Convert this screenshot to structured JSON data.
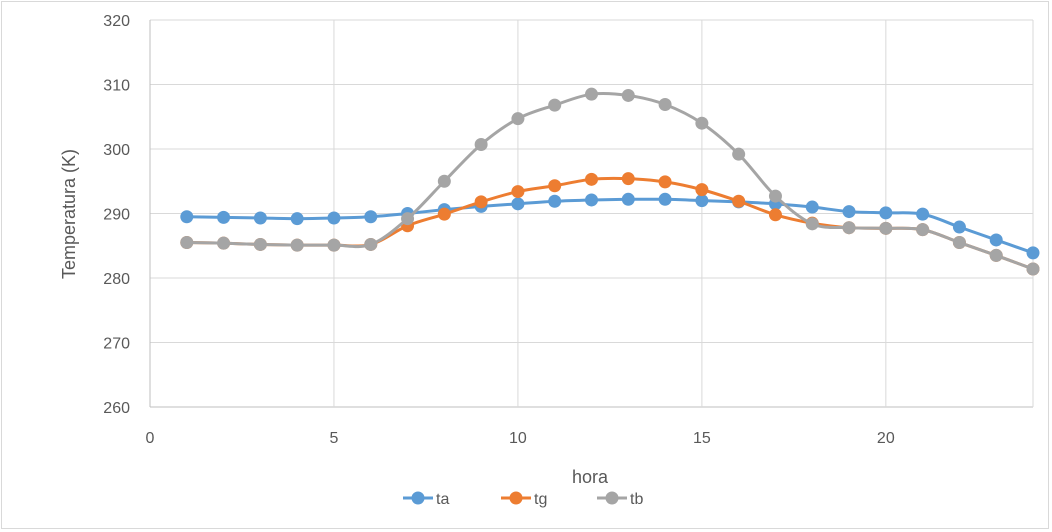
{
  "chart_data": {
    "type": "line",
    "title": "",
    "xlabel": "hora",
    "ylabel": "Temperatura (K)",
    "xlim": [
      0,
      24
    ],
    "ylim": [
      260,
      320
    ],
    "x_ticks": [
      0,
      5,
      10,
      15,
      20
    ],
    "y_ticks": [
      260,
      270,
      280,
      290,
      300,
      310,
      320
    ],
    "grid": true,
    "legend_position": "bottom",
    "x": [
      1,
      2,
      3,
      4,
      5,
      6,
      7,
      8,
      9,
      10,
      11,
      12,
      13,
      14,
      15,
      16,
      17,
      18,
      19,
      20,
      21,
      22,
      23,
      24
    ],
    "series": [
      {
        "name": "ta",
        "color": "#5b9bd5",
        "values": [
          289.5,
          289.4,
          289.3,
          289.2,
          289.3,
          289.5,
          290.0,
          290.6,
          291.1,
          291.5,
          291.9,
          292.1,
          292.2,
          292.2,
          292.0,
          291.8,
          291.5,
          291.0,
          290.3,
          290.1,
          289.9,
          287.9,
          285.9,
          283.9
        ]
      },
      {
        "name": "tg",
        "color": "#ed7d31",
        "values": [
          285.5,
          285.4,
          285.2,
          285.1,
          285.1,
          285.2,
          288.1,
          289.9,
          291.8,
          293.4,
          294.3,
          295.3,
          295.4,
          294.9,
          293.7,
          291.9,
          289.8,
          288.5,
          287.8,
          287.7,
          287.5,
          285.5,
          283.5,
          281.4
        ]
      },
      {
        "name": "tb",
        "color": "#a5a5a5",
        "values": [
          285.5,
          285.4,
          285.2,
          285.1,
          285.1,
          285.2,
          289.2,
          295.0,
          300.7,
          304.7,
          306.8,
          308.5,
          308.3,
          306.9,
          304.0,
          299.2,
          292.7,
          288.4,
          287.8,
          287.7,
          287.5,
          285.5,
          283.5,
          281.4
        ]
      }
    ]
  }
}
